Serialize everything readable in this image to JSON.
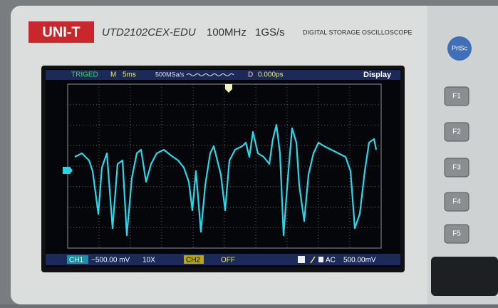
{
  "header": {
    "brand": "UNI-T",
    "model": "UTD2102CEX-EDU",
    "bandwidth": "100MHz",
    "sample_rate": "1GS/s",
    "description": "DIGITAL STORAGE OSCILLOSCOPE"
  },
  "side_panel": {
    "print_button": "PrtSc",
    "function_buttons": [
      "F1",
      "F2",
      "F3",
      "F4",
      "F5"
    ]
  },
  "screen": {
    "top_bar": {
      "trigger_status": "TRIGED",
      "timebase_label": "M",
      "timebase": "5ms",
      "acquisition": "500MSa/s",
      "delay_label": "D",
      "delay": "0.000ps",
      "menu": "Display"
    },
    "bottom_bar": {
      "ch1_label": "CH1",
      "ch1_scale": "~500.00 mV",
      "ch1_probe": "10X",
      "ch2_label": "CH2",
      "ch2_state": "OFF",
      "coupling": "AC",
      "trigger_level": "500.00mV"
    }
  }
}
